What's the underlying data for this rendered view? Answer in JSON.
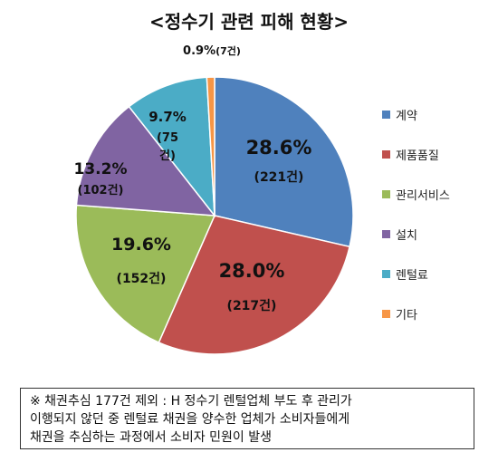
{
  "chart_data": {
    "type": "pie",
    "title": "<정수기 관련 피해 현황>",
    "slices": [
      {
        "label": "계약",
        "percent": 28.6,
        "percent_label": "28.6%",
        "count_label": "(221건)",
        "color": "#4F81BD"
      },
      {
        "label": "제품품질",
        "percent": 28.0,
        "percent_label": "28.0%",
        "count_label": "(217건)",
        "color": "#C0504D"
      },
      {
        "label": "관리서비스",
        "percent": 19.6,
        "percent_label": "19.6%",
        "count_label": "(152건)",
        "color": "#9BBB59"
      },
      {
        "label": "설치",
        "percent": 13.2,
        "percent_label": "13.2%",
        "count_label": "(102건)",
        "color": "#8064A2"
      },
      {
        "label": "렌털료",
        "percent": 9.7,
        "percent_label": "9.7%",
        "count_label": "(75건)",
        "color": "#4BACC6"
      },
      {
        "label": "기타",
        "percent": 0.9,
        "percent_label": "0.9%",
        "count_label": "(7건)",
        "color": "#F79646"
      }
    ],
    "legend_position": "right",
    "start_angle": "top",
    "direction": "clockwise"
  },
  "footnote": {
    "lines": [
      "※ 채권추심 177건 제외 : H 정수기 렌털업체 부도 후 관리가",
      "이행되지 않던 중 렌털료 채권을 양수한 업체가 소비자들에게",
      "채권을 추심하는 과정에서 소비자 민원이 발생"
    ]
  }
}
